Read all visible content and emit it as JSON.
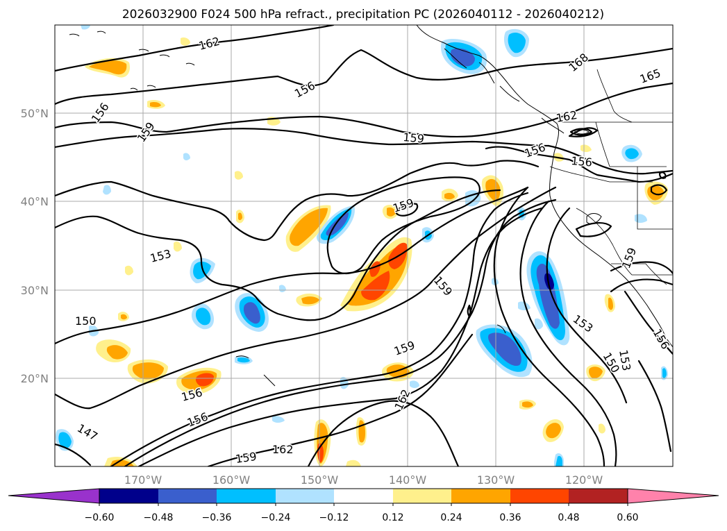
{
  "title": "2026032900 F024 500 hPa refract., precipitation PC (2026040112 - 2026040212)",
  "map": {
    "lat_ticks": [
      "50°N",
      "40°N",
      "30°N",
      "20°N"
    ],
    "lon_ticks": [
      "170°W",
      "160°W",
      "150°W",
      "140°W",
      "130°W",
      "120°W"
    ]
  },
  "contours": {
    "labels": [
      {
        "text": "162"
      },
      {
        "text": "156"
      },
      {
        "text": "156"
      },
      {
        "text": "159"
      },
      {
        "text": "168"
      },
      {
        "text": "165"
      },
      {
        "text": "162"
      },
      {
        "text": "159"
      },
      {
        "text": "156"
      },
      {
        "text": "156"
      },
      {
        "text": "159"
      },
      {
        "text": "153"
      },
      {
        "text": "159"
      },
      {
        "text": "159"
      },
      {
        "text": "150"
      },
      {
        "text": "153"
      },
      {
        "text": "159"
      },
      {
        "text": "156"
      },
      {
        "text": "150"
      },
      {
        "text": "153"
      },
      {
        "text": "156"
      },
      {
        "text": "156"
      },
      {
        "text": "162"
      },
      {
        "text": "147"
      },
      {
        "text": "162"
      },
      {
        "text": "159"
      }
    ]
  },
  "colorbar": {
    "tick_labels": [
      "−0.60",
      "−0.48",
      "−0.36",
      "−0.24",
      "−0.12",
      "0.12",
      "0.24",
      "0.36",
      "0.48",
      "0.60"
    ],
    "colors": [
      "#9932cc",
      "#00008b",
      "#3a5fcd",
      "#00bfff",
      "#b0e2ff",
      "#ffffff",
      "#fff08c",
      "#ffa500",
      "#ff4500",
      "#b22222",
      "#ff82ab"
    ]
  },
  "colors": {
    "light_blue": "#b0e2ff",
    "blue": "#00bfff",
    "royal": "#3a5fcd",
    "navy": "#00008b",
    "yellow": "#fff08c",
    "orange": "#ffa500",
    "red": "#ff4500",
    "brick": "#b22222"
  }
}
